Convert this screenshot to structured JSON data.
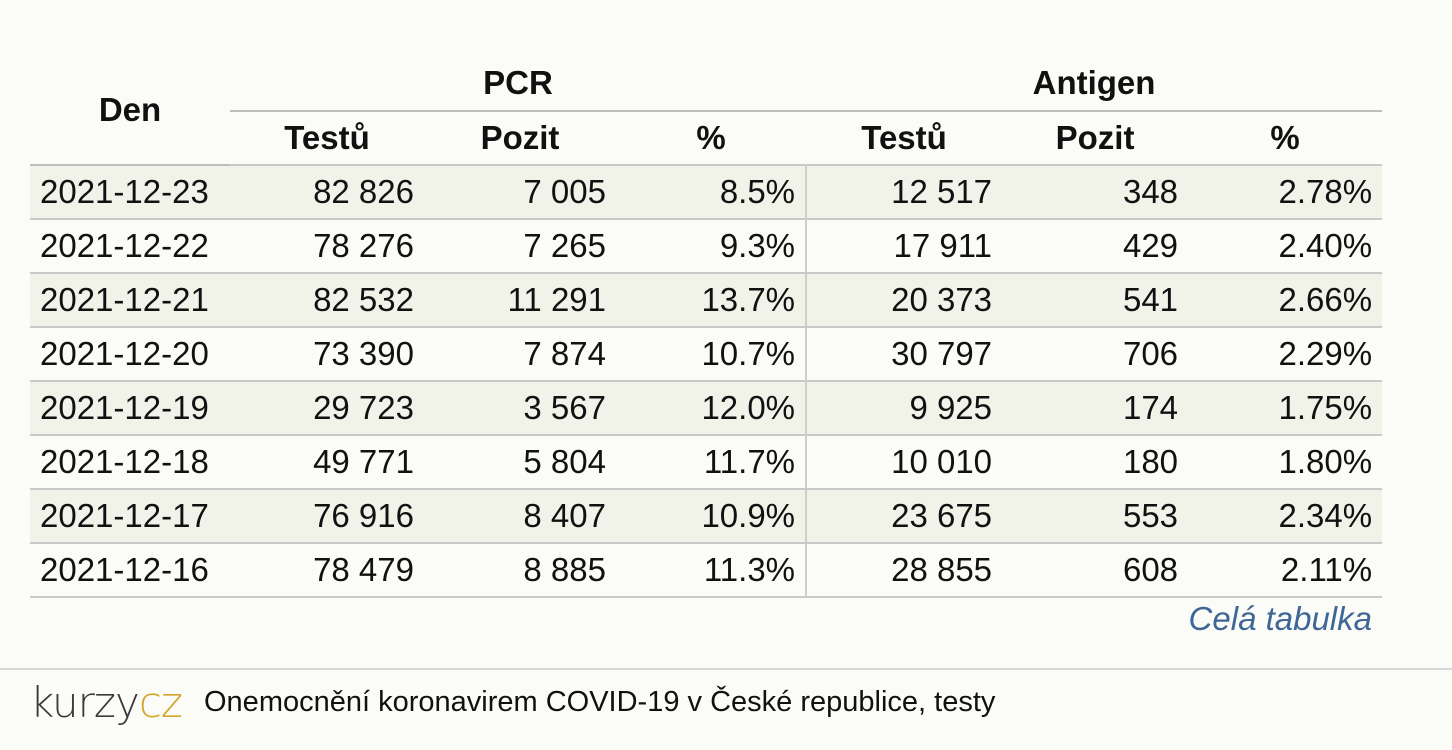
{
  "table": {
    "headers": {
      "den": "Den",
      "pcr": "PCR",
      "antigen": "Antigen",
      "sub": [
        "Testů",
        "Pozit",
        "%",
        "Testů",
        "Pozit",
        "%"
      ]
    },
    "rows": [
      {
        "den": "2021-12-23",
        "pcr_testu": "82 826",
        "pcr_pozit": "7 005",
        "pcr_pct": "8.5%",
        "ag_testu": "12 517",
        "ag_pozit": "348",
        "ag_pct": "2.78%"
      },
      {
        "den": "2021-12-22",
        "pcr_testu": "78 276",
        "pcr_pozit": "7 265",
        "pcr_pct": "9.3%",
        "ag_testu": "17 911",
        "ag_pozit": "429",
        "ag_pct": "2.40%"
      },
      {
        "den": "2021-12-21",
        "pcr_testu": "82 532",
        "pcr_pozit": "11 291",
        "pcr_pct": "13.7%",
        "ag_testu": "20 373",
        "ag_pozit": "541",
        "ag_pct": "2.66%"
      },
      {
        "den": "2021-12-20",
        "pcr_testu": "73 390",
        "pcr_pozit": "7 874",
        "pcr_pct": "10.7%",
        "ag_testu": "30 797",
        "ag_pozit": "706",
        "ag_pct": "2.29%"
      },
      {
        "den": "2021-12-19",
        "pcr_testu": "29 723",
        "pcr_pozit": "3 567",
        "pcr_pct": "12.0%",
        "ag_testu": "9 925",
        "ag_pozit": "174",
        "ag_pct": "1.75%"
      },
      {
        "den": "2021-12-18",
        "pcr_testu": "49 771",
        "pcr_pozit": "5 804",
        "pcr_pct": "11.7%",
        "ag_testu": "10 010",
        "ag_pozit": "180",
        "ag_pct": "1.80%"
      },
      {
        "den": "2021-12-17",
        "pcr_testu": "76 916",
        "pcr_pozit": "8 407",
        "pcr_pct": "10.9%",
        "ag_testu": "23 675",
        "ag_pozit": "553",
        "ag_pct": "2.34%"
      },
      {
        "den": "2021-12-16",
        "pcr_testu": "78 479",
        "pcr_pozit": "8 885",
        "pcr_pct": "11.3%",
        "ag_testu": "28 855",
        "ag_pozit": "608",
        "ag_pct": "2.11%"
      }
    ]
  },
  "link": {
    "cela_tabulka": "Celá tabulka"
  },
  "footer": {
    "logo_left": "kurzy",
    "logo_right": "cz",
    "text": "Onemocnění koronavirem COVID-19 v České republice, testy"
  },
  "colors": {
    "row_alt": "#f2f3e8",
    "link": "#3e6797",
    "logo_accent": "#d4a52b"
  }
}
